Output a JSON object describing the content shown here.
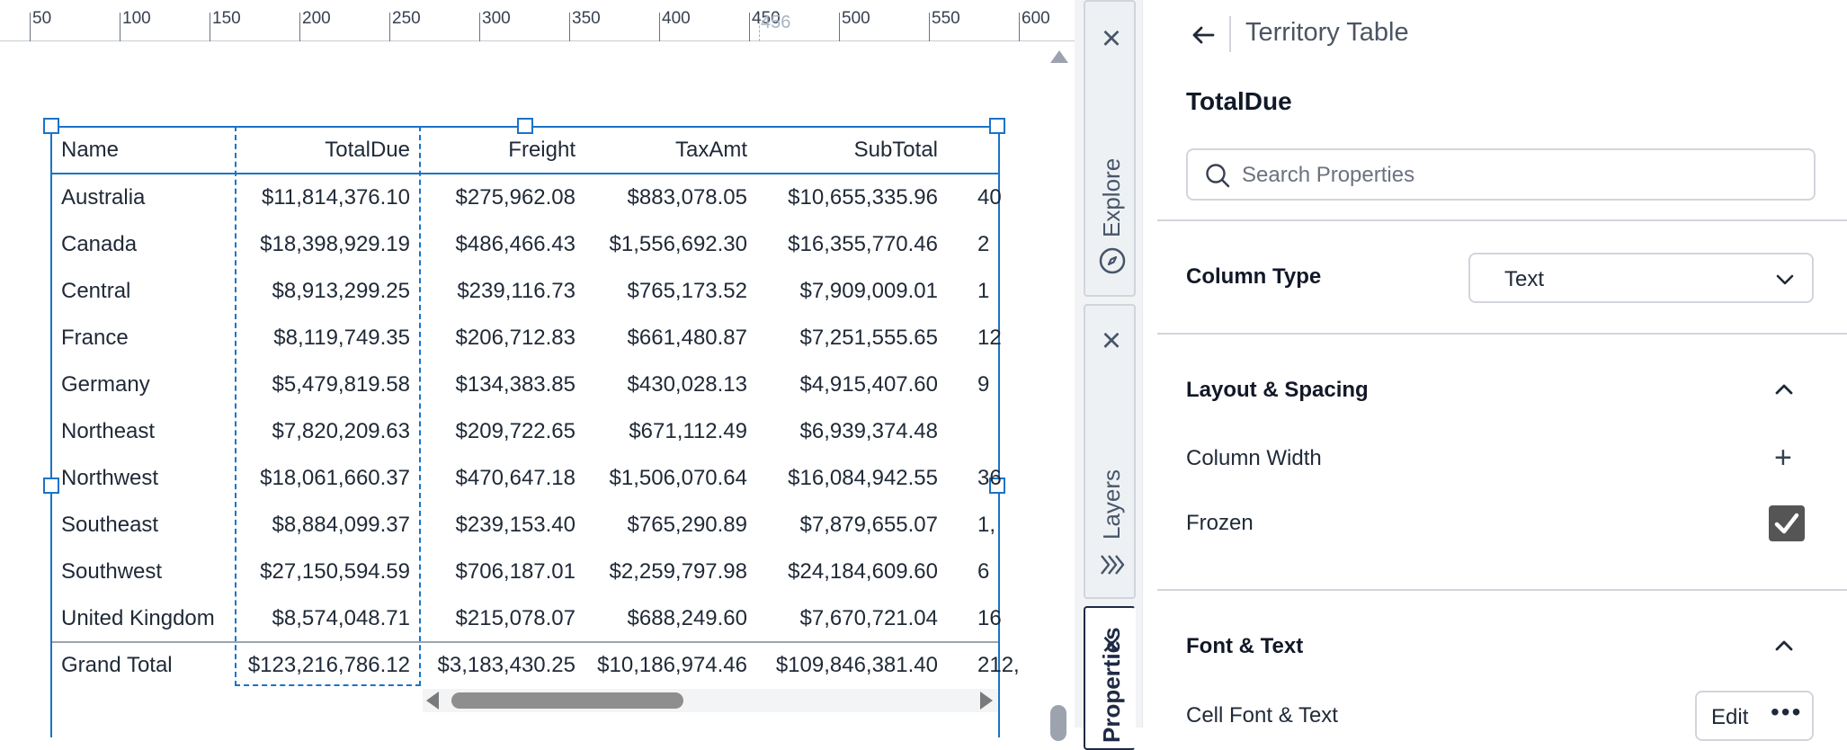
{
  "ruler": {
    "ticks": [
      "50",
      "100",
      "150",
      "200",
      "250",
      "300",
      "350",
      "400",
      "450",
      "500",
      "550",
      "600"
    ],
    "marker": "456"
  },
  "table": {
    "columns": [
      "Name",
      "TotalDue",
      "Freight",
      "TaxAmt",
      "SubTotal"
    ],
    "rows": [
      [
        "Australia",
        "$11,814,376.10",
        "$275,962.08",
        "$883,078.05",
        "$10,655,335.96",
        "40"
      ],
      [
        "Canada",
        "$18,398,929.19",
        "$486,466.43",
        "$1,556,692.30",
        "$16,355,770.46",
        "2"
      ],
      [
        "Central",
        "$8,913,299.25",
        "$239,116.73",
        "$765,173.52",
        "$7,909,009.01",
        "1"
      ],
      [
        "France",
        "$8,119,749.35",
        "$206,712.83",
        "$661,480.87",
        "$7,251,555.65",
        "12"
      ],
      [
        "Germany",
        "$5,479,819.58",
        "$134,383.85",
        "$430,028.13",
        "$4,915,407.60",
        "9"
      ],
      [
        "Northeast",
        "$7,820,209.63",
        "$209,722.65",
        "$671,112.49",
        "$6,939,374.48",
        ""
      ],
      [
        "Northwest",
        "$18,061,660.37",
        "$470,647.18",
        "$1,506,070.64",
        "$16,084,942.55",
        "36"
      ],
      [
        "Southeast",
        "$8,884,099.37",
        "$239,153.40",
        "$765,290.89",
        "$7,879,655.07",
        "1,"
      ],
      [
        "Southwest",
        "$27,150,594.59",
        "$706,187.01",
        "$2,259,797.98",
        "$24,184,609.60",
        "6"
      ],
      [
        "United Kingdom",
        "$8,574,048.71",
        "$215,078.07",
        "$688,249.60",
        "$7,670,721.04",
        "16"
      ]
    ],
    "total": [
      "Grand Total",
      "$123,216,786.12",
      "$3,183,430.25",
      "$10,186,974.46",
      "$109,846,381.40",
      "212,"
    ]
  },
  "dock": {
    "tabs": [
      {
        "label": "Explore",
        "icon": "compass-icon"
      },
      {
        "label": "Layers",
        "icon": "layers-icon"
      },
      {
        "label": "Properties",
        "icon": "properties-icon"
      }
    ]
  },
  "panel": {
    "title": "Territory Table",
    "column_name": "TotalDue",
    "search_placeholder": "Search Properties",
    "column_type_label": "Column Type",
    "column_type_value": "Text",
    "layout_section": "Layout & Spacing",
    "column_width_label": "Column Width",
    "frozen_label": "Frozen",
    "frozen_checked": true,
    "font_section": "Font & Text",
    "cell_font_label": "Cell Font & Text",
    "edit_label": "Edit"
  },
  "colors": {
    "selection": "#1a73c8",
    "text": "#1f2937",
    "checkbox": "#555555"
  }
}
